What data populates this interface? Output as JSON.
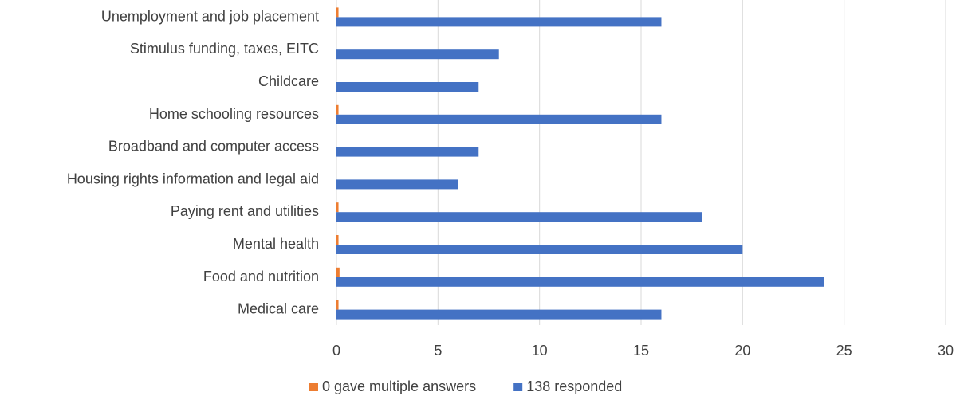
{
  "chart_data": {
    "type": "bar",
    "orientation": "horizontal",
    "title": "",
    "xlabel": "",
    "ylabel": "",
    "categories": [
      "Medical care",
      "Food and nutrition",
      "Mental health",
      "Paying rent and utilities",
      "Housing rights information and legal aid",
      "Broadband and computer access",
      "Home schooling resources",
      "Childcare",
      "Stimulus funding, taxes, EITC",
      "Unemployment and job placement"
    ],
    "series": [
      {
        "name": "0 gave multiple answers",
        "color": "#ED7D31",
        "values": [
          0.1,
          0.15,
          0.1,
          0.1,
          0,
          0,
          0.1,
          0,
          0,
          0.1
        ]
      },
      {
        "name": "138 responded",
        "color": "#4472C4",
        "values": [
          16,
          24,
          20,
          18,
          6,
          7,
          16,
          7,
          8,
          16
        ]
      }
    ],
    "xlim": [
      0,
      30
    ],
    "xticks": [
      0,
      5,
      10,
      15,
      20,
      25,
      30
    ],
    "grid": true,
    "legend_position": "bottom"
  }
}
